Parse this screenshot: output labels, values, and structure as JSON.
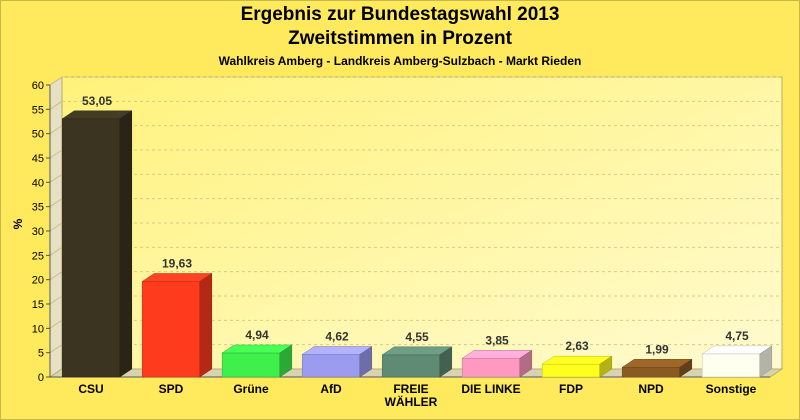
{
  "chart_data": {
    "type": "bar",
    "title": "Ergebnis zur Bundestagswahl 2013",
    "subtitle": "Zweitstimmen in Prozent",
    "caption": "Wahlkreis Amberg - Landkreis Amberg-Sulzbach - Markt Rieden",
    "ylabel": "%",
    "xlabel": "",
    "ylim": [
      0,
      60
    ],
    "yticks": [
      0,
      5,
      10,
      15,
      20,
      25,
      30,
      35,
      40,
      45,
      50,
      55,
      60
    ],
    "grid": true,
    "categories": [
      [
        "CSU"
      ],
      [
        "SPD"
      ],
      [
        "Grüne"
      ],
      [
        "AfD"
      ],
      [
        "FREIE",
        "WÄHLER"
      ],
      [
        "DIE LINKE"
      ],
      [
        "FDP"
      ],
      [
        "NPD"
      ],
      [
        "Sonstige"
      ]
    ],
    "values": [
      53.05,
      19.63,
      4.94,
      4.62,
      4.55,
      3.85,
      2.63,
      1.99,
      4.75
    ],
    "value_labels": [
      "53,05",
      "19,63",
      "4,94",
      "4,62",
      "4,55",
      "3,85",
      "2,63",
      "1,99",
      "4,75"
    ],
    "colors": [
      "#3b3420",
      "#ff3b1e",
      "#3ff04a",
      "#9b9bf0",
      "#5f8a73",
      "#ff99bf",
      "#ffff1e",
      "#8a5a22",
      "#fffff0"
    ]
  }
}
